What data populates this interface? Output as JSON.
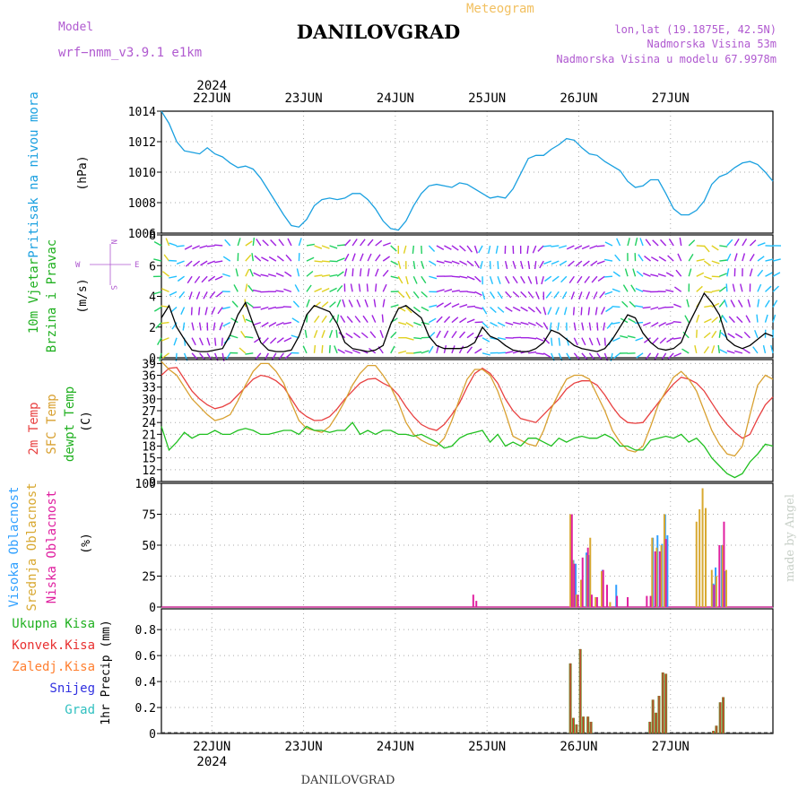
{
  "header": {
    "model_label": "Model",
    "model_value": "wrf−nmm_v3.9.1  e1km",
    "product": "Meteogram",
    "station": "DANILOVGRAD",
    "coords": "lon,lat (19.1875E, 42.5N)",
    "elevation": "Nadmorska Visina 53m",
    "model_elevation": "Nadmorska Visina u modelu 67.9978m",
    "credit": "made by Angel",
    "footer_station": "DANILOVGRAD"
  },
  "colors": {
    "purple": "#b05ad0",
    "orange_title": "#f2c060",
    "pressure": "#1aa0e0",
    "temp2m": "#e84040",
    "sfc": "#d8a030",
    "dew": "#20c020",
    "high_cloud": "#30a0ff",
    "mid_cloud": "#d8a830",
    "low_cloud": "#e020a0",
    "precip_total": "#20b020",
    "precip_conv": "#e83030",
    "precip_frozen": "#ff7f30",
    "snow": "#3030e0",
    "graupel": "#30c0c0"
  },
  "chart_data": [
    {
      "type": "line",
      "panel": "pressure",
      "ylabel_left": "Pritisak na nivou mora",
      "ylabel_unit": "(hPa)",
      "x_top_labels": [
        "2024",
        "22JUN",
        "23JUN",
        "24JUN",
        "25JUN",
        "26JUN",
        "27JUN"
      ],
      "ylim": [
        1006,
        1014
      ],
      "yticks": [
        1006,
        1008,
        1010,
        1012,
        1014
      ],
      "grid": true,
      "series": [
        {
          "values": [
            1014.0,
            1013.2,
            1012.0,
            1011.4,
            1011.3,
            1011.2,
            1011.6,
            1011.2,
            1011.0,
            1010.6,
            1010.3,
            1010.4,
            1010.2,
            1009.6,
            1008.8,
            1008.0,
            1007.2,
            1006.5,
            1006.4,
            1006.9,
            1007.8,
            1008.2,
            1008.3,
            1008.2,
            1008.3,
            1008.6,
            1008.6,
            1008.2,
            1007.6,
            1006.8,
            1006.3,
            1006.2,
            1006.8,
            1007.8,
            1008.6,
            1009.1,
            1009.2,
            1009.1,
            1009.0,
            1009.3,
            1009.2,
            1008.9,
            1008.6,
            1008.3,
            1008.4,
            1008.3,
            1008.9,
            1009.9,
            1010.9,
            1011.1,
            1011.1,
            1011.5,
            1011.8,
            1012.2,
            1012.1,
            1011.6,
            1011.2,
            1011.1,
            1010.7,
            1010.4,
            1010.1,
            1009.4,
            1009.0,
            1009.1,
            1009.5,
            1009.5,
            1008.6,
            1007.6,
            1007.2,
            1007.2,
            1007.5,
            1008.1,
            1009.2,
            1009.7,
            1009.9,
            1010.3,
            1010.6,
            1010.7,
            1010.5,
            1010.0,
            1009.4
          ]
        }
      ]
    },
    {
      "type": "line",
      "panel": "wind",
      "ylabel_left": "10m Vjetar",
      "ylabel_left2": "Brzina i Pravac",
      "ylabel_unit": "(m/s)",
      "legend_compass": [
        "N",
        "W",
        "E",
        "S"
      ],
      "ylim": [
        0,
        8
      ],
      "yticks": [
        0,
        2,
        4,
        6,
        8
      ],
      "grid": true,
      "series": [
        {
          "name": "speed",
          "values": [
            2.6,
            3.4,
            2.0,
            1.2,
            0.5,
            0.4,
            0.4,
            0.5,
            0.6,
            1.5,
            2.8,
            3.6,
            2.2,
            1.0,
            0.5,
            0.4,
            0.4,
            0.5,
            1.4,
            2.8,
            3.4,
            3.2,
            3.0,
            2.2,
            1.0,
            0.6,
            0.5,
            0.4,
            0.5,
            0.8,
            2.2,
            3.2,
            3.4,
            3.0,
            2.6,
            1.4,
            0.8,
            0.6,
            0.6,
            0.6,
            0.7,
            1.0,
            2.0,
            1.4,
            1.2,
            0.8,
            0.5,
            0.4,
            0.4,
            0.6,
            1.0,
            1.8,
            1.6,
            1.2,
            0.8,
            0.6,
            0.5,
            0.4,
            0.6,
            1.2,
            2.0,
            2.8,
            2.6,
            1.6,
            1.0,
            0.6,
            0.5,
            0.6,
            1.0,
            2.2,
            3.2,
            4.2,
            3.6,
            2.8,
            1.2,
            0.8,
            0.6,
            0.8,
            1.2,
            1.6,
            1.4
          ]
        }
      ]
    },
    {
      "type": "line",
      "panel": "temperature",
      "ylabel_left": "2m Temp",
      "ylabel_left2": "SFC Temp",
      "ylabel_left3": "dewpt Temp",
      "ylabel_unit": "(C)",
      "ylim": [
        9,
        40
      ],
      "yticks": [
        9,
        12,
        15,
        18,
        21,
        24,
        27,
        30,
        33,
        36,
        39
      ],
      "grid": true,
      "series": [
        {
          "name": "2m Temp",
          "values": [
            36,
            37.8,
            38,
            35,
            32,
            30,
            28.5,
            27.5,
            28,
            29,
            31,
            33,
            35,
            36,
            35.6,
            34.6,
            33,
            30,
            27,
            25.5,
            24.5,
            24.6,
            25.5,
            27.5,
            30,
            32,
            34,
            35,
            35.2,
            34,
            33,
            31,
            28,
            25.5,
            23.5,
            22.5,
            22,
            23.5,
            26,
            29,
            33,
            36.5,
            37.8,
            36.5,
            34,
            30,
            27,
            25,
            24.5,
            24,
            26,
            28,
            30,
            32.5,
            34,
            34.6,
            34.6,
            33.5,
            31,
            28,
            25.5,
            24,
            23.8,
            24,
            26.5,
            29,
            31.5,
            33.8,
            35.5,
            35,
            34,
            32,
            29,
            26,
            23.5,
            21.5,
            20,
            21,
            25,
            28.5,
            30.5
          ]
        },
        {
          "name": "SFC Temp",
          "values": [
            39.5,
            37.5,
            36,
            33,
            30,
            28,
            26,
            24.5,
            25,
            26,
            29.5,
            33.5,
            37,
            39,
            39,
            37,
            34,
            29,
            24.5,
            22.5,
            22,
            21.5,
            23,
            26,
            29.5,
            33.5,
            36.5,
            38.5,
            38.5,
            36,
            33,
            29,
            24,
            21,
            19.5,
            18.5,
            18,
            20,
            24.5,
            30,
            35,
            37.5,
            37.5,
            36,
            32,
            26.5,
            20.5,
            19.5,
            18.5,
            18,
            22,
            27.5,
            31.5,
            35,
            36,
            36,
            35,
            31,
            27,
            22,
            19,
            17,
            16.5,
            18,
            23,
            28.5,
            32,
            35.5,
            37,
            35,
            32,
            27,
            22,
            18.5,
            16,
            15.5,
            18,
            26,
            33.5,
            36,
            35
          ]
        },
        {
          "name": "dewpt Temp",
          "values": [
            23,
            17,
            19,
            21.5,
            20,
            21,
            21,
            22,
            21,
            21,
            22,
            22.5,
            22,
            21,
            21,
            21.5,
            22,
            22,
            21,
            23,
            22,
            22,
            21.5,
            22,
            22,
            24,
            21,
            22,
            21,
            22,
            22,
            21,
            21,
            20.5,
            21,
            20,
            19,
            17.5,
            18,
            20,
            21,
            21.5,
            22,
            19,
            21,
            18,
            19,
            18,
            20,
            20,
            19,
            18,
            20,
            19,
            20,
            20.5,
            20,
            20,
            21,
            20,
            18,
            18,
            17,
            17,
            19.5,
            20,
            20.5,
            20,
            21,
            19,
            20,
            18,
            15,
            13,
            11,
            10,
            11,
            14,
            16,
            18.5,
            18
          ]
        }
      ]
    },
    {
      "type": "bar",
      "panel": "cloud",
      "ylabel_left": "Visoka Oblacnost",
      "ylabel_left2": "Srednja Oblacnost",
      "ylabel_left3": "Niska Oblacnost",
      "ylabel_unit": "(%)",
      "ylim": [
        0,
        100
      ],
      "yticks": [
        0,
        25,
        50,
        75,
        100
      ],
      "grid": true,
      "series": [
        {
          "name": "Visoka Oblacnost",
          "points": [
            [
              53.6,
              75
            ],
            [
              53.9,
              38
            ],
            [
              54.2,
              35
            ],
            [
              55.0,
              22
            ],
            [
              55.6,
              44
            ],
            [
              56.0,
              42
            ],
            [
              57.7,
              30
            ],
            [
              59.5,
              18
            ],
            [
              64.3,
              56
            ],
            [
              64.9,
              58
            ],
            [
              65.5,
              51
            ],
            [
              65.9,
              75
            ],
            [
              66.2,
              58
            ],
            [
              72.2,
              19
            ],
            [
              72.5,
              32
            ],
            [
              73.3,
              50
            ],
            [
              73.8,
              29
            ]
          ]
        },
        {
          "name": "Srednja Oblacnost",
          "points": [
            [
              53.5,
              75
            ],
            [
              53.8,
              38
            ],
            [
              54.3,
              10
            ],
            [
              54.9,
              22
            ],
            [
              55.7,
              42
            ],
            [
              56.1,
              56
            ],
            [
              56.8,
              8
            ],
            [
              57.6,
              29
            ],
            [
              58.7,
              4
            ],
            [
              64.2,
              56
            ],
            [
              64.8,
              48
            ],
            [
              65.4,
              50
            ],
            [
              65.8,
              75
            ],
            [
              70.0,
              69
            ],
            [
              70.4,
              79
            ],
            [
              70.8,
              96
            ],
            [
              71.2,
              80
            ],
            [
              72.0,
              30
            ],
            [
              72.6,
              25
            ],
            [
              73.4,
              50
            ],
            [
              73.9,
              30
            ]
          ]
        },
        {
          "name": "Niska Oblacnost",
          "points": [
            [
              40.8,
              10
            ],
            [
              41.2,
              5
            ],
            [
              53.7,
              75
            ],
            [
              54.0,
              35
            ],
            [
              54.5,
              10
            ],
            [
              55.1,
              40
            ],
            [
              55.8,
              48
            ],
            [
              56.3,
              10
            ],
            [
              57.0,
              8
            ],
            [
              57.8,
              30
            ],
            [
              58.3,
              18
            ],
            [
              59.6,
              9
            ],
            [
              61.0,
              8
            ],
            [
              63.5,
              9
            ],
            [
              64.0,
              9
            ],
            [
              64.6,
              45
            ],
            [
              65.2,
              45
            ],
            [
              66.0,
              55
            ],
            [
              72.3,
              18
            ],
            [
              73.0,
              50
            ],
            [
              73.6,
              69
            ]
          ]
        }
      ]
    },
    {
      "type": "bar",
      "panel": "precip",
      "ylabel_left": "1hr Precip (mm)",
      "legend": [
        "Ukupna Kisa",
        "Konvek.Kisa",
        "Zaledj.Kisa",
        "Snijeg",
        "Grad"
      ],
      "x_bottom_labels": [
        "22JUN",
        "23JUN",
        "24JUN",
        "25JUN",
        "26JUN",
        "27JUN",
        "2024"
      ],
      "ylim": [
        0,
        0.96
      ],
      "yticks": [
        0,
        0.2,
        0.4,
        0.6,
        0.8
      ],
      "grid": true,
      "series": [
        {
          "name": "Ukupna Kisa",
          "points": [
            [
              53.5,
              0.54
            ],
            [
              53.9,
              0.12
            ],
            [
              54.3,
              0.07
            ],
            [
              54.8,
              0.65
            ],
            [
              55.2,
              0.13
            ],
            [
              55.8,
              0.13
            ],
            [
              56.2,
              0.09
            ],
            [
              63.9,
              0.09
            ],
            [
              64.3,
              0.26
            ],
            [
              64.7,
              0.16
            ],
            [
              65.1,
              0.29
            ],
            [
              65.6,
              0.47
            ],
            [
              66.0,
              0.46
            ],
            [
              72.2,
              0.02
            ],
            [
              72.6,
              0.06
            ],
            [
              73.1,
              0.24
            ],
            [
              73.5,
              0.28
            ]
          ]
        }
      ]
    }
  ]
}
